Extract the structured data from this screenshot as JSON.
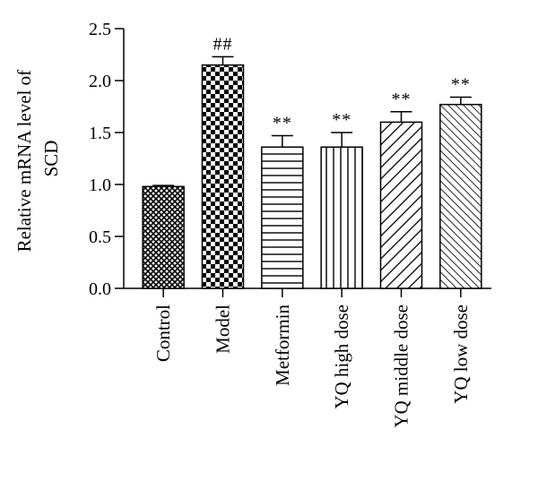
{
  "chart_data": {
    "type": "bar",
    "title": "",
    "xlabel": "",
    "ylabel": [
      "Relative mRNA level of",
      "SCD"
    ],
    "ylim": [
      0,
      2.5
    ],
    "yticks": [
      "0.0",
      "0.5",
      "1.0",
      "1.5",
      "2.0",
      "2.5"
    ],
    "grid": false,
    "categories": [
      "Control",
      "Model",
      "Metformin",
      "YQ high dose",
      "YQ middle dose",
      "YQ low dose"
    ],
    "values": [
      0.98,
      2.15,
      1.36,
      1.36,
      1.6,
      1.77
    ],
    "errors": [
      0.01,
      0.08,
      0.11,
      0.14,
      0.1,
      0.07
    ],
    "annotations": [
      "",
      "##",
      "**",
      "**",
      "**",
      "**"
    ],
    "patterns": [
      "fine-crosshatch",
      "checkerboard",
      "horizontal-lines",
      "vertical-lines",
      "diagonal-lines-wide",
      "diagonal-lines-dense"
    ]
  }
}
